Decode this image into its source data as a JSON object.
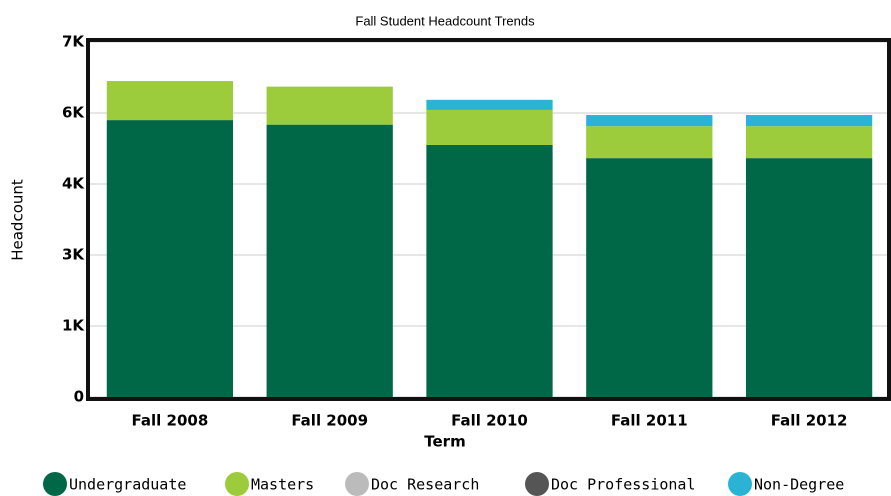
{
  "chart_data": {
    "type": "stacked_bar",
    "title": "Fall Student Headcount Trends",
    "x_label": "Term",
    "y_label": "Headcount",
    "categories": [
      "Fall 2008",
      "Fall 2009",
      "Fall 2010",
      "Fall 2011",
      "Fall 2012"
    ],
    "series": [
      {
        "name": "Undergraduate",
        "color": "#006747",
        "values": [
          5460,
          5370,
          4970,
          4710,
          4710
        ]
      },
      {
        "name": "Masters",
        "color": "#9ccb3b",
        "values": [
          770,
          750,
          690,
          630,
          630
        ]
      },
      {
        "name": "Doc Research",
        "color": "#bbbbbb",
        "values": [
          0,
          0,
          0,
          0,
          0
        ]
      },
      {
        "name": "Doc Professional",
        "color": "#555555",
        "values": [
          0,
          0,
          0,
          0,
          0
        ]
      },
      {
        "name": "Non-Degree",
        "color": "#2bb3d5",
        "values": [
          0,
          0,
          200,
          220,
          220
        ]
      }
    ],
    "ylim": [
      0,
      7000
    ],
    "yticks": [
      0,
      {
        "value": 1400,
        "label": "1K"
      },
      {
        "value": 2800,
        "label": "3K"
      },
      {
        "value": 4200,
        "label": "4K"
      },
      {
        "value": 5600,
        "label": "6K"
      },
      {
        "value": 7000,
        "label": "7K"
      }
    ],
    "grid": true
  }
}
